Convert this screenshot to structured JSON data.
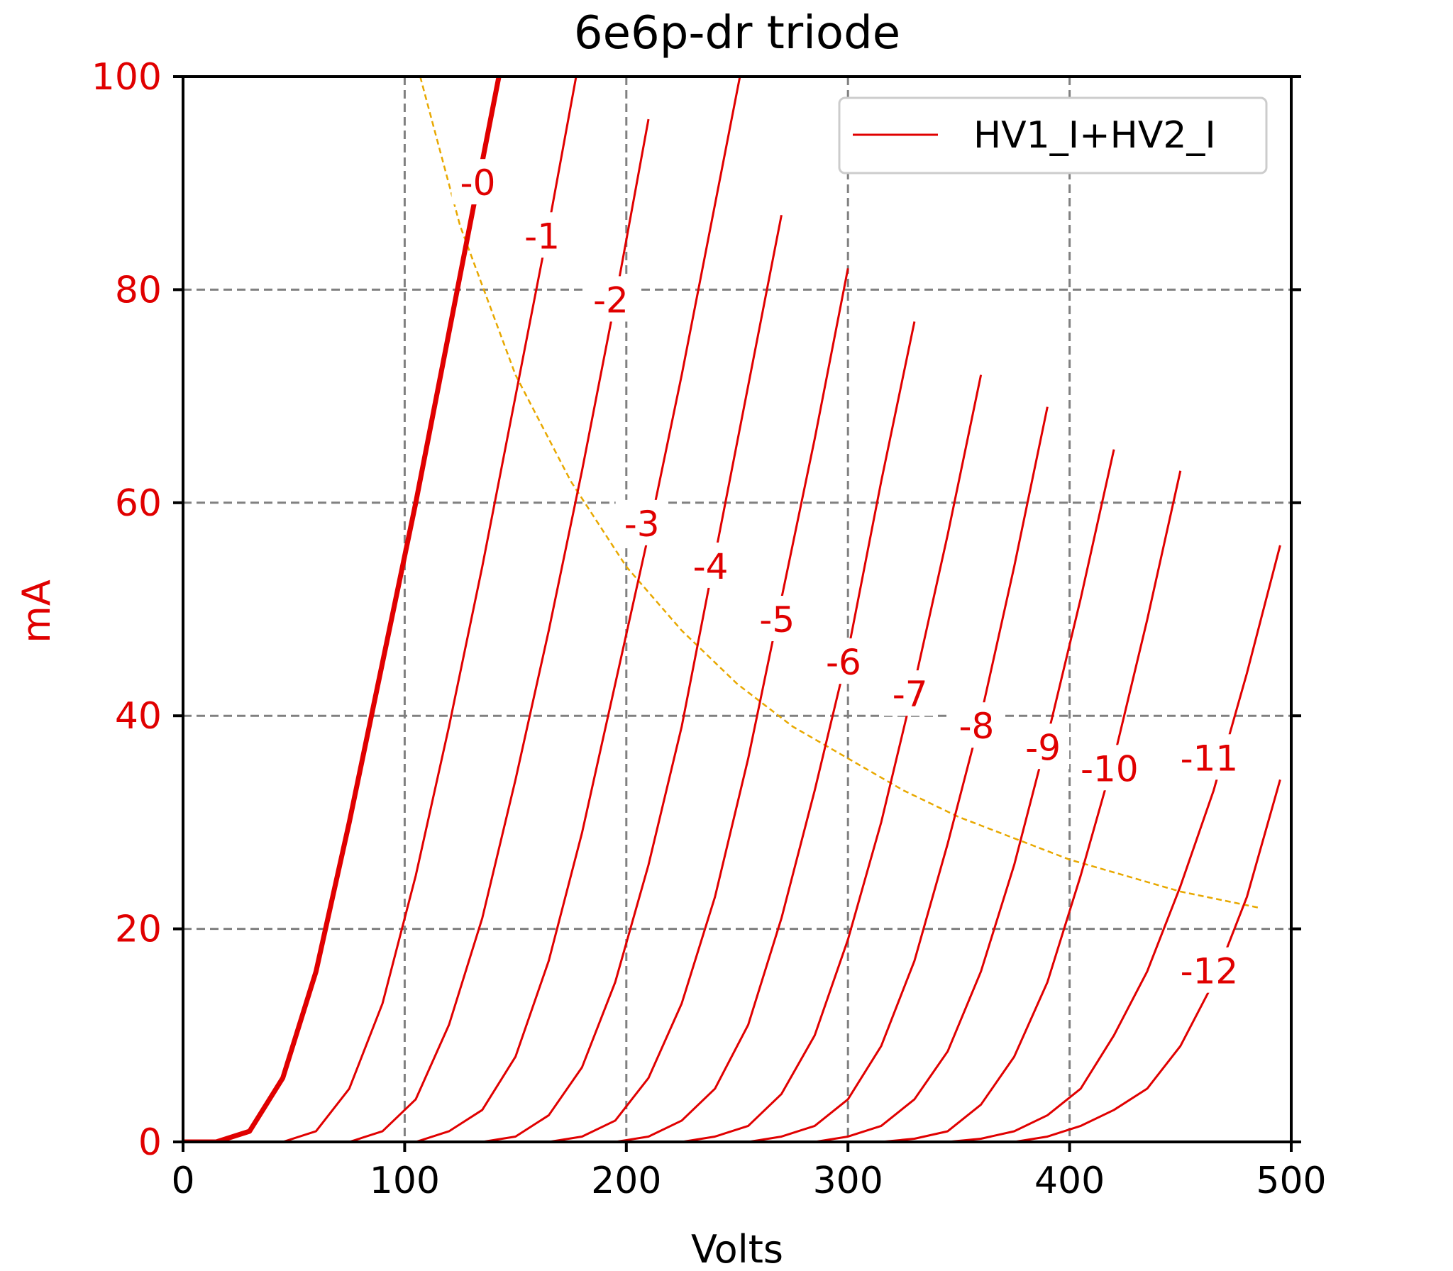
{
  "chart_data": {
    "type": "line",
    "title": "6e6p-dr triode",
    "xlabel": "Volts",
    "ylabel": "mA",
    "xlim": [
      0,
      500
    ],
    "ylim": [
      0,
      100
    ],
    "xticks": [
      "0",
      "100",
      "200",
      "300",
      "400",
      "500"
    ],
    "yticks": [
      "0",
      "20",
      "40",
      "60",
      "80",
      "100"
    ],
    "grid": true,
    "legend": {
      "position": "top-right",
      "entries": [
        "HV1_I+HV2_I"
      ]
    },
    "colors": {
      "curves": "#e00000",
      "load_line": "#e8a800",
      "grid": "#808080",
      "axis_text_y": "#e00000"
    },
    "curves": [
      {
        "label": "-0",
        "label_at": [
          133,
          90
        ],
        "x": [
          0,
          15,
          30,
          45,
          60,
          75,
          90,
          105,
          120,
          135,
          150
        ],
        "y": [
          0,
          0,
          1,
          6,
          16,
          30,
          45,
          60,
          76,
          92,
          108
        ]
      },
      {
        "label": "-1",
        "label_at": [
          162,
          85
        ],
        "x": [
          45,
          60,
          75,
          90,
          105,
          120,
          135,
          150,
          165,
          180
        ],
        "y": [
          0,
          1,
          5,
          13,
          25,
          39,
          54,
          70,
          86,
          103
        ]
      },
      {
        "label": "-2",
        "label_at": [
          193,
          79
        ],
        "x": [
          75,
          90,
          105,
          120,
          135,
          150,
          165,
          180,
          195,
          210
        ],
        "y": [
          0,
          1,
          4,
          11,
          21,
          34,
          48,
          63,
          79,
          96
        ]
      },
      {
        "label": "-3",
        "label_at": [
          207,
          58
        ],
        "x": [
          105,
          120,
          135,
          150,
          165,
          180,
          195,
          210,
          225,
          240,
          255
        ],
        "y": [
          0,
          1,
          3,
          8,
          17,
          29,
          43,
          57,
          72,
          88,
          104
        ]
      },
      {
        "label": "-4",
        "label_at": [
          238,
          54
        ],
        "x": [
          135,
          150,
          165,
          180,
          195,
          210,
          225,
          240,
          255,
          270
        ],
        "y": [
          0,
          0.5,
          2.5,
          7,
          15,
          26,
          39,
          55,
          71,
          87
        ]
      },
      {
        "label": "-5",
        "label_at": [
          268,
          49
        ],
        "x": [
          165,
          180,
          195,
          210,
          225,
          240,
          255,
          270,
          285,
          300
        ],
        "y": [
          0,
          0.5,
          2,
          6,
          13,
          23,
          36,
          51,
          66,
          82
        ]
      },
      {
        "label": "-6",
        "label_at": [
          298,
          45
        ],
        "x": [
          195,
          210,
          225,
          240,
          255,
          270,
          285,
          300,
          315,
          330
        ],
        "y": [
          0,
          0.5,
          2,
          5,
          11,
          21,
          33,
          46,
          62,
          77
        ]
      },
      {
        "label": "-7",
        "label_at": [
          328,
          42
        ],
        "x": [
          225,
          240,
          255,
          270,
          285,
          300,
          315,
          330,
          345,
          360
        ],
        "y": [
          0,
          0.5,
          1.5,
          4.5,
          10,
          19,
          30,
          43,
          57,
          72
        ]
      },
      {
        "label": "-8",
        "label_at": [
          358,
          39
        ],
        "x": [
          255,
          270,
          285,
          300,
          315,
          330,
          345,
          360,
          375,
          390
        ],
        "y": [
          0,
          0.5,
          1.5,
          4,
          9,
          17,
          28,
          40,
          54,
          69
        ]
      },
      {
        "label": "-9",
        "label_at": [
          388,
          37
        ],
        "x": [
          285,
          300,
          315,
          330,
          345,
          360,
          375,
          390,
          405,
          420
        ],
        "y": [
          0,
          0.5,
          1.5,
          4,
          8.5,
          16,
          26,
          38,
          51,
          65
        ]
      },
      {
        "label": "-10",
        "label_at": [
          418,
          35
        ],
        "x": [
          315,
          330,
          345,
          360,
          375,
          390,
          405,
          420,
          435,
          450
        ],
        "y": [
          0,
          0.3,
          1,
          3.5,
          8,
          15,
          25,
          36,
          49,
          63
        ]
      },
      {
        "label": "-11",
        "label_at": [
          463,
          36
        ],
        "x": [
          345,
          360,
          375,
          390,
          405,
          420,
          435,
          450,
          465,
          480,
          495
        ],
        "y": [
          0,
          0.3,
          1,
          2.5,
          5,
          10,
          16,
          24,
          33,
          44,
          56
        ]
      },
      {
        "label": "-12",
        "label_at": [
          463,
          16
        ],
        "x": [
          375,
          390,
          405,
          420,
          435,
          450,
          465,
          480,
          495
        ],
        "y": [
          0,
          0.5,
          1.5,
          3,
          5,
          9,
          15,
          23,
          34
        ]
      }
    ],
    "load_line": {
      "x": [
        107,
        125,
        150,
        175,
        200,
        225,
        250,
        275,
        300,
        325,
        350,
        375,
        400,
        425,
        450,
        485
      ],
      "y": [
        100,
        86,
        72,
        62,
        54,
        48,
        43,
        39,
        36,
        33,
        30.5,
        28.5,
        26.5,
        25,
        23.5,
        22
      ]
    }
  }
}
